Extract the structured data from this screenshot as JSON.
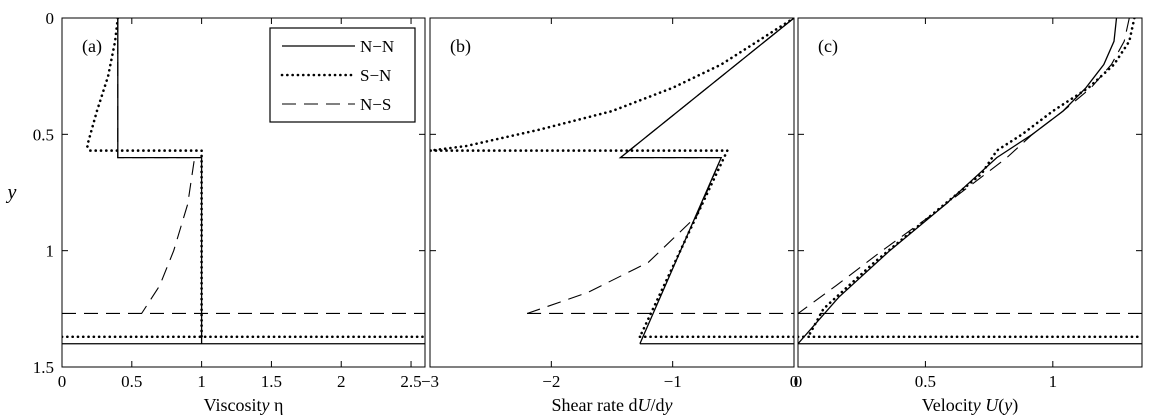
{
  "chart_data": [
    {
      "type": "line",
      "panel_label": "(a)",
      "xlabel": "Viscosity η",
      "ylabel": "y",
      "xlim": [
        0,
        2.6
      ],
      "ylim": [
        0,
        1.5
      ],
      "y_inverted": true,
      "xticks": [
        "0",
        "0.5",
        "1",
        "1.5",
        "2",
        "2.5"
      ],
      "xtick_values": [
        0,
        0.5,
        1,
        1.5,
        2,
        2.5
      ],
      "yticks": [
        "0",
        "0.5",
        "1",
        "1.5"
      ],
      "ytick_values": [
        0,
        0.5,
        1,
        1.5
      ],
      "legend": {
        "position": "top-right",
        "entries": [
          "N−N",
          "S−N",
          "N−S"
        ]
      },
      "series": [
        {
          "name": "N−N",
          "style": "solid",
          "x": [
            0.4,
            0.4,
            1.0,
            1.0
          ],
          "y": [
            0,
            0.6,
            0.6,
            1.4
          ]
        },
        {
          "name": "S−N",
          "style": "dotted",
          "x": [
            0.4,
            0.38,
            0.33,
            0.25,
            0.18,
            0.2,
            0.3,
            0.5,
            0.7,
            0.9,
            1.0,
            1.0
          ],
          "y": [
            0,
            0.1,
            0.25,
            0.4,
            0.55,
            0.57,
            0.57,
            0.57,
            0.57,
            0.57,
            0.57,
            1.37
          ]
        },
        {
          "name": "N−S",
          "style": "dashed",
          "x": [
            0.4,
            0.4,
            0.95,
            0.9,
            0.8,
            0.7,
            0.57
          ],
          "y": [
            0,
            0.6,
            0.6,
            0.8,
            1.0,
            1.15,
            1.27
          ]
        }
      ],
      "hlines": [
        {
          "series": "N−N",
          "style": "solid",
          "y": 1.4
        },
        {
          "series": "S−N",
          "style": "dotted",
          "y": 1.37
        },
        {
          "series": "N−S",
          "style": "dashed",
          "y": 1.27
        }
      ]
    },
    {
      "type": "line",
      "panel_label": "(b)",
      "xlabel": "Shear rate dU/dy",
      "xlim": [
        -3,
        0
      ],
      "ylim": [
        0,
        1.5
      ],
      "y_inverted": true,
      "xticks": [
        "−3",
        "−2",
        "−1",
        "0"
      ],
      "xtick_values": [
        -3,
        -2,
        -1,
        0
      ],
      "series": [
        {
          "name": "N−N",
          "style": "solid",
          "x": [
            0,
            -1.43,
            -0.6,
            -1.27
          ],
          "y": [
            0,
            0.6,
            0.6,
            1.4
          ]
        },
        {
          "name": "S−N",
          "style": "dotted",
          "x": [
            0,
            -0.3,
            -0.6,
            -1.0,
            -1.5,
            -2.1,
            -2.7,
            -3.0,
            -1.5,
            -0.55,
            -1.27
          ],
          "y": [
            0,
            0.1,
            0.2,
            0.3,
            0.4,
            0.48,
            0.55,
            0.57,
            0.57,
            0.57,
            1.37
          ]
        },
        {
          "name": "N−S",
          "style": "dashed",
          "x": [
            0,
            -1.43,
            -0.6,
            -0.8,
            -1.2,
            -1.7,
            -2.2
          ],
          "y": [
            0,
            0.6,
            0.6,
            0.85,
            1.05,
            1.18,
            1.27
          ]
        }
      ],
      "hlines": [
        {
          "series": "N−N",
          "style": "solid",
          "y": 1.4,
          "x_from": -1.27
        },
        {
          "series": "S−N",
          "style": "dotted",
          "y": 1.37,
          "x_from": -1.27
        },
        {
          "series": "N−S",
          "style": "dashed",
          "y": 1.27,
          "x_from": -2.2
        }
      ]
    },
    {
      "type": "line",
      "panel_label": "(c)",
      "xlabel": "Velocity U(y)",
      "xlim": [
        0,
        1.35
      ],
      "ylim": [
        0,
        1.5
      ],
      "y_inverted": true,
      "xticks": [
        "0",
        "0.5",
        "1"
      ],
      "xtick_values": [
        0,
        0.5,
        1
      ],
      "series": [
        {
          "name": "N−N",
          "style": "solid",
          "x": [
            1.25,
            1.24,
            1.2,
            1.13,
            1.04,
            0.92,
            0.78,
            0.58,
            0.36,
            0.16,
            0.0
          ],
          "y": [
            0,
            0.1,
            0.2,
            0.3,
            0.4,
            0.5,
            0.6,
            0.8,
            1.0,
            1.2,
            1.4
          ]
        },
        {
          "name": "S−N",
          "style": "dotted",
          "x": [
            1.32,
            1.3,
            1.24,
            1.14,
            1.0,
            0.88,
            0.78,
            0.72,
            0.52,
            0.3,
            0.1,
            0.04
          ],
          "y": [
            0,
            0.1,
            0.2,
            0.3,
            0.4,
            0.5,
            0.57,
            0.67,
            0.85,
            1.05,
            1.25,
            1.37
          ]
        },
        {
          "name": "N−S",
          "style": "dashed",
          "x": [
            1.3,
            1.28,
            1.23,
            1.15,
            1.04,
            0.92,
            0.82,
            0.7,
            0.52,
            0.33,
            0.15,
            0.0
          ],
          "y": [
            0,
            0.1,
            0.2,
            0.3,
            0.4,
            0.5,
            0.6,
            0.7,
            0.85,
            1.0,
            1.15,
            1.27
          ]
        }
      ],
      "hlines": [
        {
          "series": "N−N",
          "style": "solid",
          "y": 1.4
        },
        {
          "series": "S−N",
          "style": "dotted",
          "y": 1.37
        },
        {
          "series": "N−S",
          "style": "dashed",
          "y": 1.27
        }
      ]
    }
  ]
}
